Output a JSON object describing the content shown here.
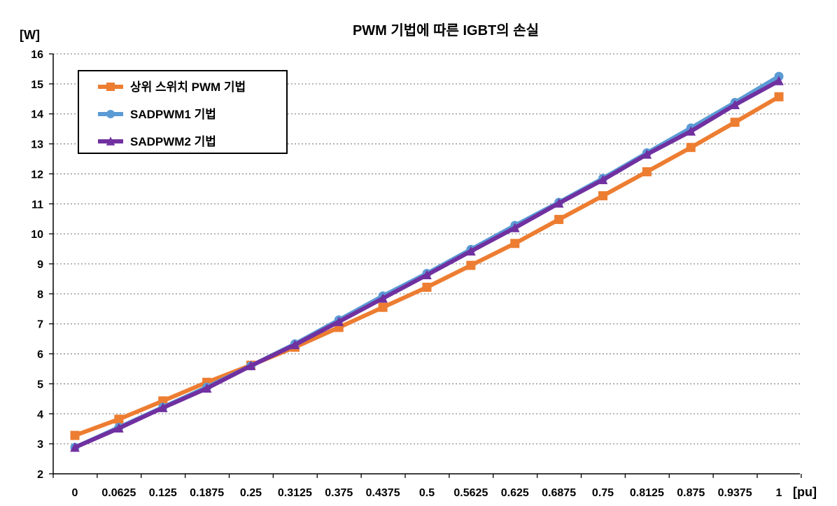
{
  "chart_data": {
    "type": "line",
    "title": "PWM 기법에 따른 IGBT의 손실",
    "ylabel": "[W]",
    "xlabel": "[pu]",
    "ylim": [
      2,
      16
    ],
    "yticks": [
      2,
      3,
      4,
      5,
      6,
      7,
      8,
      9,
      10,
      11,
      12,
      13,
      14,
      15,
      16
    ],
    "categories": [
      "0",
      "0.0625",
      "0.125",
      "0.1875",
      "0.25",
      "0.3125",
      "0.375",
      "0.4375",
      "0.5",
      "0.5625",
      "0.625",
      "0.6875",
      "0.75",
      "0.8125",
      "0.875",
      "0.9375",
      "1"
    ],
    "grid": "horizontal-dotted",
    "legend_position": "top-left",
    "series": [
      {
        "name": "상위 스위치 PWM 기법",
        "color": "#ED7D31",
        "marker": "square",
        "values": [
          3.28,
          3.82,
          4.43,
          5.05,
          5.62,
          6.22,
          6.88,
          7.55,
          8.22,
          8.95,
          9.68,
          10.48,
          11.27,
          12.07,
          12.88,
          13.72,
          14.57
        ]
      },
      {
        "name": "SADPWM1 기법",
        "color": "#5B9BD5",
        "marker": "circle",
        "values": [
          2.88,
          3.55,
          4.22,
          4.89,
          5.6,
          6.33,
          7.13,
          7.93,
          8.68,
          9.48,
          10.28,
          11.05,
          11.85,
          12.7,
          13.53,
          14.38,
          15.25
        ]
      },
      {
        "name": "SADPWM2 기법",
        "color": "#7030A0",
        "marker": "triangle",
        "values": [
          2.88,
          3.52,
          4.2,
          4.85,
          5.6,
          6.3,
          7.07,
          7.85,
          8.63,
          9.42,
          10.2,
          11.02,
          11.8,
          12.65,
          13.42,
          14.3,
          15.1
        ]
      }
    ]
  }
}
